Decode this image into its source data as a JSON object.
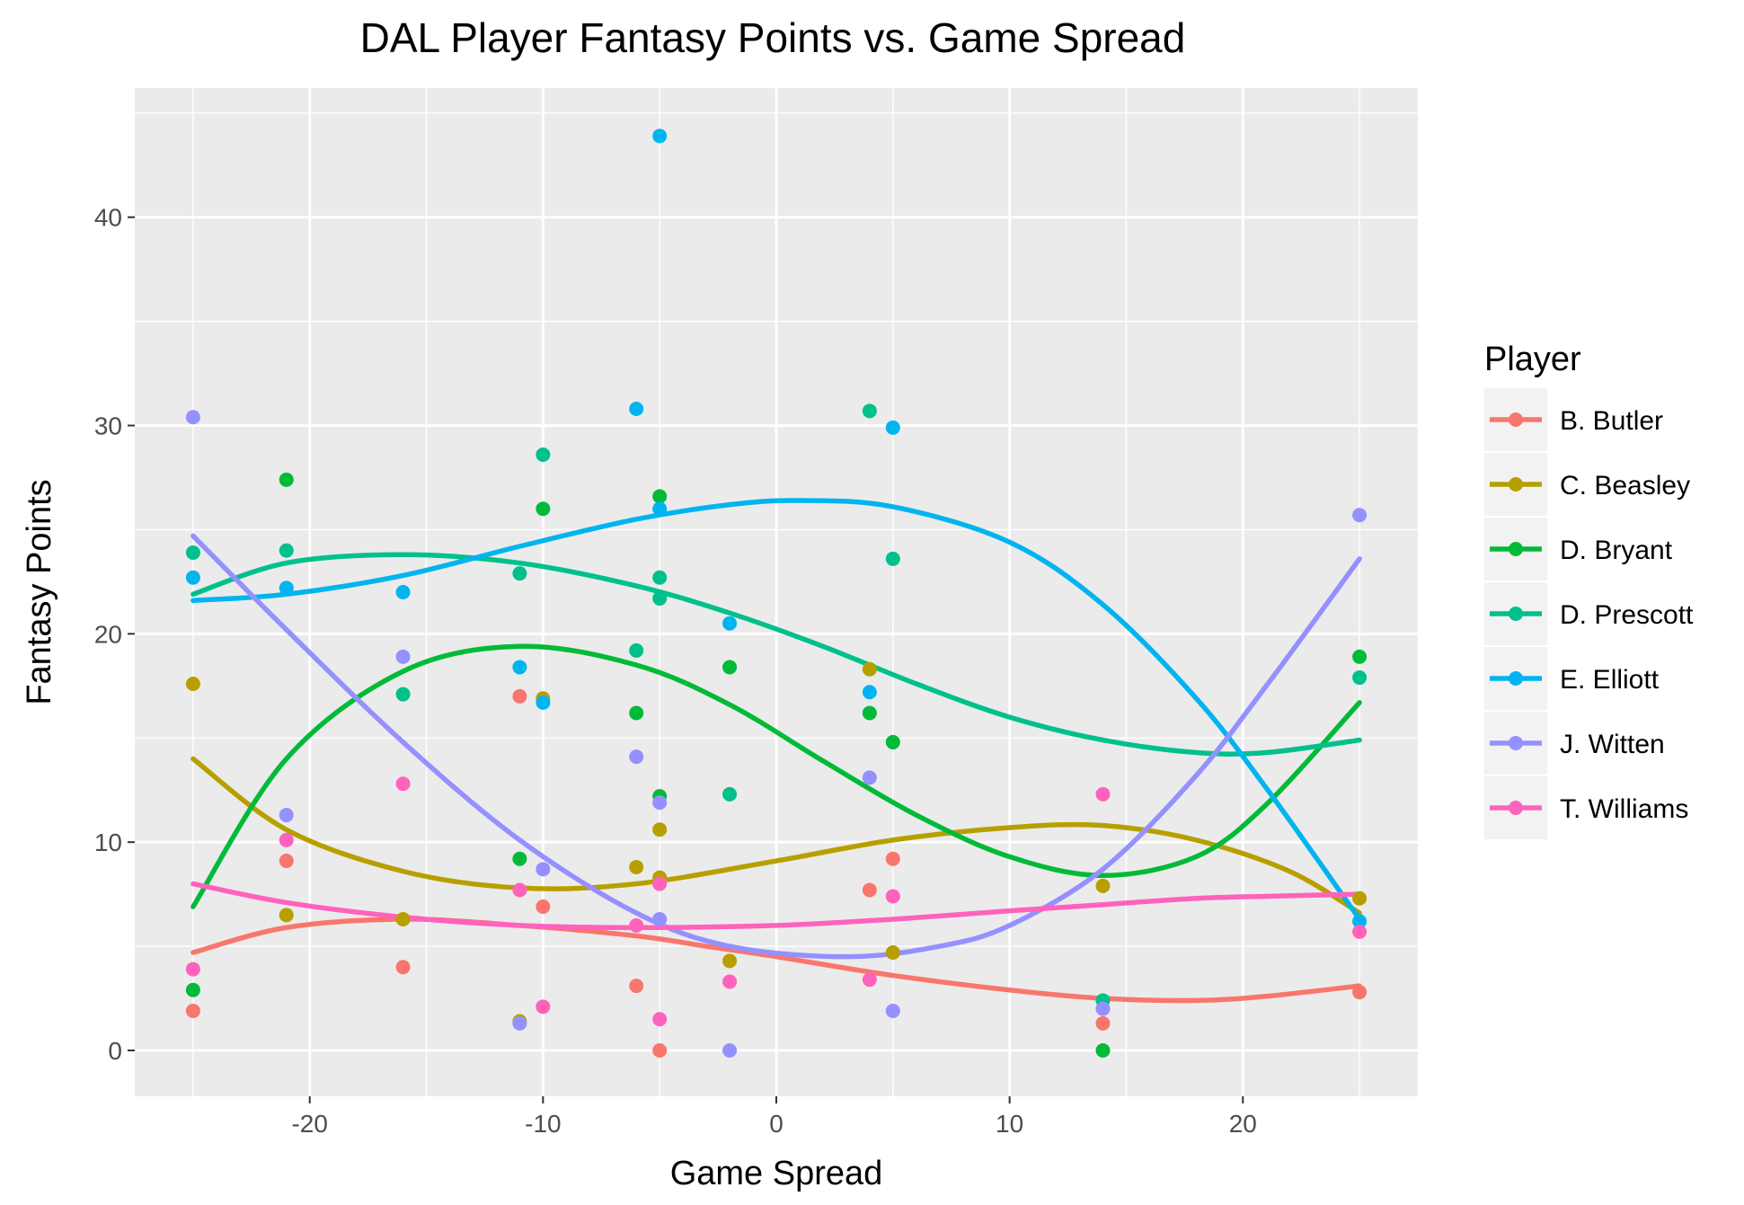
{
  "chart_data": {
    "type": "scatter",
    "title": "DAL Player Fantasy Points vs. Game Spread",
    "xlabel": "Game Spread",
    "ylabel": "Fantasy Points",
    "xlim": [
      -27.5,
      27.5
    ],
    "ylim": [
      -2.2,
      46.2
    ],
    "x_ticks": [
      -20,
      -10,
      0,
      10,
      20
    ],
    "y_ticks": [
      0,
      10,
      20,
      30,
      40
    ],
    "x_tick_labels": [
      "-20",
      "-10",
      "0",
      "10",
      "20"
    ],
    "y_tick_labels": [
      "0",
      "10",
      "20",
      "30",
      "40"
    ],
    "grid": true,
    "smooth_lines": true,
    "legend": {
      "title": "Player",
      "position": "right"
    },
    "series": [
      {
        "name": "B. Butler",
        "color": "#F8766D",
        "points": [
          [
            -25,
            1.9
          ],
          [
            -21,
            9.1
          ],
          [
            -16,
            4.0
          ],
          [
            -11,
            17.0
          ],
          [
            -10,
            6.9
          ],
          [
            -6,
            3.1
          ],
          [
            -5,
            0.0
          ],
          [
            4,
            7.7
          ],
          [
            5,
            9.2
          ],
          [
            14,
            1.3
          ],
          [
            25,
            2.8
          ]
        ],
        "smooth": [
          [
            -25,
            4.7
          ],
          [
            -21,
            5.9
          ],
          [
            -16,
            6.3
          ],
          [
            -11,
            6.0
          ],
          [
            -6,
            5.5
          ],
          [
            -3,
            5.0
          ],
          [
            0,
            4.5
          ],
          [
            5,
            3.6
          ],
          [
            10,
            2.9
          ],
          [
            14,
            2.5
          ],
          [
            18,
            2.4
          ],
          [
            21,
            2.6
          ],
          [
            25,
            3.1
          ]
        ]
      },
      {
        "name": "C. Beasley",
        "color": "#B79F00",
        "points": [
          [
            -25,
            17.6
          ],
          [
            -21,
            6.5
          ],
          [
            -16,
            6.3
          ],
          [
            -11,
            1.4
          ],
          [
            -10,
            16.9
          ],
          [
            -6,
            8.8
          ],
          [
            -5,
            10.6
          ],
          [
            -5,
            8.3
          ],
          [
            -2,
            4.3
          ],
          [
            4,
            18.3
          ],
          [
            5,
            4.7
          ],
          [
            14,
            7.9
          ],
          [
            25,
            7.3
          ]
        ],
        "smooth": [
          [
            -25,
            14.0
          ],
          [
            -21,
            10.6
          ],
          [
            -16,
            8.6
          ],
          [
            -11,
            7.8
          ],
          [
            -6,
            8.0
          ],
          [
            0,
            9.1
          ],
          [
            5,
            10.1
          ],
          [
            10,
            10.7
          ],
          [
            14,
            10.8
          ],
          [
            18,
            10.1
          ],
          [
            22,
            8.6
          ],
          [
            25,
            6.6
          ]
        ]
      },
      {
        "name": "D. Bryant",
        "color": "#00BA38",
        "points": [
          [
            -25,
            2.9
          ],
          [
            -21,
            27.4
          ],
          [
            -11,
            9.2
          ],
          [
            -10,
            26.0
          ],
          [
            -6,
            16.2
          ],
          [
            -5,
            12.2
          ],
          [
            -5,
            26.6
          ],
          [
            -2,
            18.4
          ],
          [
            4,
            16.2
          ],
          [
            5,
            14.8
          ],
          [
            14,
            0.0
          ],
          [
            25,
            18.9
          ]
        ],
        "smooth": [
          [
            -25,
            6.9
          ],
          [
            -21,
            14.0
          ],
          [
            -16,
            18.2
          ],
          [
            -11,
            19.4
          ],
          [
            -6,
            18.5
          ],
          [
            -2,
            16.6
          ],
          [
            2,
            13.9
          ],
          [
            6,
            11.3
          ],
          [
            10,
            9.3
          ],
          [
            14,
            8.4
          ],
          [
            18,
            9.3
          ],
          [
            21,
            11.8
          ],
          [
            25,
            16.7
          ]
        ]
      },
      {
        "name": "D. Prescott",
        "color": "#00C08B",
        "points": [
          [
            -25,
            23.9
          ],
          [
            -21,
            24.0
          ],
          [
            -16,
            17.1
          ],
          [
            -11,
            22.9
          ],
          [
            -10,
            28.6
          ],
          [
            -6,
            19.2
          ],
          [
            -5,
            22.7
          ],
          [
            -5,
            21.7
          ],
          [
            -2,
            12.3
          ],
          [
            4,
            30.7
          ],
          [
            5,
            23.6
          ],
          [
            14,
            2.4
          ],
          [
            25,
            17.9
          ]
        ],
        "smooth": [
          [
            -25,
            21.9
          ],
          [
            -21,
            23.4
          ],
          [
            -16,
            23.8
          ],
          [
            -11,
            23.4
          ],
          [
            -6,
            22.3
          ],
          [
            -2,
            21.0
          ],
          [
            2,
            19.4
          ],
          [
            6,
            17.6
          ],
          [
            10,
            16.0
          ],
          [
            14,
            14.9
          ],
          [
            18,
            14.3
          ],
          [
            21,
            14.3
          ],
          [
            25,
            14.9
          ]
        ]
      },
      {
        "name": "E. Elliott",
        "color": "#00B4EF",
        "points": [
          [
            -25,
            22.7
          ],
          [
            -21,
            22.2
          ],
          [
            -16,
            22.0
          ],
          [
            -11,
            18.4
          ],
          [
            -10,
            16.7
          ],
          [
            -6,
            30.8
          ],
          [
            -5,
            26.0
          ],
          [
            -5,
            43.9
          ],
          [
            -2,
            20.5
          ],
          [
            4,
            17.2
          ],
          [
            5,
            29.9
          ],
          [
            25,
            6.2
          ]
        ],
        "smooth": [
          [
            -25,
            21.6
          ],
          [
            -21,
            21.9
          ],
          [
            -16,
            22.8
          ],
          [
            -11,
            24.2
          ],
          [
            -6,
            25.5
          ],
          [
            -2,
            26.2
          ],
          [
            1,
            26.4
          ],
          [
            5,
            26.1
          ],
          [
            10,
            24.4
          ],
          [
            14,
            21.4
          ],
          [
            18,
            16.9
          ],
          [
            21,
            12.6
          ],
          [
            25,
            6.3
          ]
        ]
      },
      {
        "name": "J. Witten",
        "color": "#9590FF",
        "points": [
          [
            -25,
            30.4
          ],
          [
            -21,
            11.3
          ],
          [
            -16,
            18.9
          ],
          [
            -11,
            1.3
          ],
          [
            -10,
            8.7
          ],
          [
            -6,
            14.1
          ],
          [
            -5,
            11.9
          ],
          [
            -5,
            6.3
          ],
          [
            -2,
            0.0
          ],
          [
            4,
            13.1
          ],
          [
            5,
            1.9
          ],
          [
            14,
            2.0
          ],
          [
            25,
            25.7
          ]
        ],
        "smooth": [
          [
            -25,
            24.7
          ],
          [
            -21,
            20.2
          ],
          [
            -16,
            14.8
          ],
          [
            -11,
            10.1
          ],
          [
            -6,
            6.6
          ],
          [
            -2,
            5.0
          ],
          [
            3,
            4.5
          ],
          [
            7,
            5.0
          ],
          [
            10,
            6.0
          ],
          [
            14,
            8.7
          ],
          [
            18,
            13.2
          ],
          [
            21,
            17.5
          ],
          [
            25,
            23.6
          ]
        ]
      },
      {
        "name": "T. Williams",
        "color": "#FF62BC",
        "points": [
          [
            -25,
            3.9
          ],
          [
            -21,
            10.1
          ],
          [
            -16,
            12.8
          ],
          [
            -11,
            7.7
          ],
          [
            -10,
            2.1
          ],
          [
            -6,
            6.0
          ],
          [
            -5,
            1.5
          ],
          [
            -5,
            8.0
          ],
          [
            -2,
            3.3
          ],
          [
            4,
            3.4
          ],
          [
            5,
            7.4
          ],
          [
            14,
            12.3
          ],
          [
            25,
            5.7
          ]
        ],
        "smooth": [
          [
            -25,
            8.0
          ],
          [
            -21,
            7.1
          ],
          [
            -16,
            6.4
          ],
          [
            -11,
            6.0
          ],
          [
            -6,
            5.9
          ],
          [
            0,
            6.0
          ],
          [
            5,
            6.3
          ],
          [
            10,
            6.7
          ],
          [
            14,
            7.0
          ],
          [
            18,
            7.3
          ],
          [
            21,
            7.4
          ],
          [
            25,
            7.5
          ]
        ]
      }
    ]
  }
}
